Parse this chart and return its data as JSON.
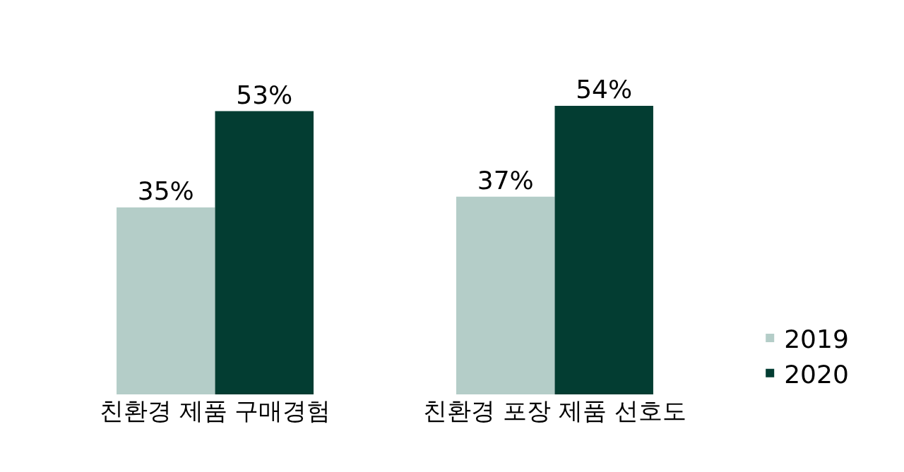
{
  "chart_data": {
    "type": "bar",
    "categories": [
      "친환경 제품 구매경험",
      "친환경 포장 제품 선호도"
    ],
    "series": [
      {
        "name": "2019",
        "color": "#b4cdc8",
        "values": [
          35,
          37
        ],
        "value_labels": [
          "35%",
          "37%"
        ]
      },
      {
        "name": "2020",
        "color": "#033d32",
        "values": [
          53,
          54
        ],
        "value_labels": [
          "53%",
          "54%"
        ]
      }
    ],
    "legend": "bottom right"
  }
}
